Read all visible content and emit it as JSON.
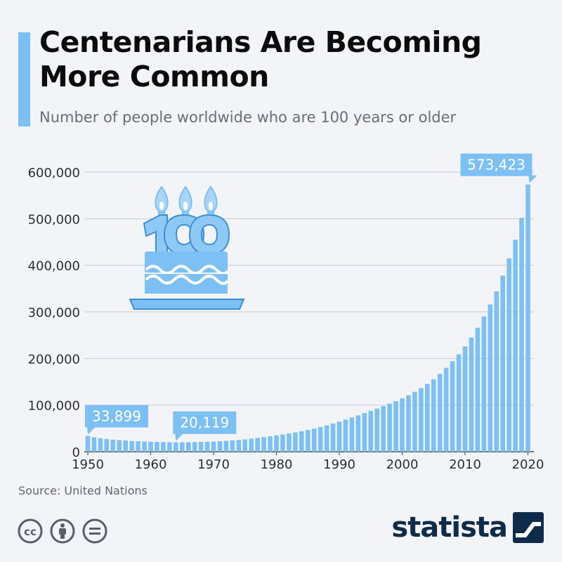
{
  "header": {
    "title": "Centenarians Are Becoming More Common",
    "subtitle": "Number of people worldwide who are 100 years or older"
  },
  "footer": {
    "source": "Source: United Nations",
    "brand": "statista"
  },
  "colors": {
    "bar": "#7cc0f4",
    "label_bg": "#7cc0f4",
    "accent": "#7cc0f4",
    "brand": "#0e2b4a"
  },
  "icons": [
    "birthday-cake-100-icon",
    "cc-icon",
    "attribution-icon",
    "no-derivatives-icon",
    "statista-logo-icon"
  ],
  "chart_data": {
    "type": "bar",
    "title": "Centenarians Are Becoming More Common",
    "subtitle": "Number of people worldwide who are 100 years or older",
    "xlabel": "",
    "ylabel": "",
    "x": [
      1950,
      1951,
      1952,
      1953,
      1954,
      1955,
      1956,
      1957,
      1958,
      1959,
      1960,
      1961,
      1962,
      1963,
      1964,
      1965,
      1966,
      1967,
      1968,
      1969,
      1970,
      1971,
      1972,
      1973,
      1974,
      1975,
      1976,
      1977,
      1978,
      1979,
      1980,
      1981,
      1982,
      1983,
      1984,
      1985,
      1986,
      1987,
      1988,
      1989,
      1990,
      1991,
      1992,
      1993,
      1994,
      1995,
      1996,
      1997,
      1998,
      1999,
      2000,
      2001,
      2002,
      2003,
      2004,
      2005,
      2006,
      2007,
      2008,
      2009,
      2010,
      2011,
      2012,
      2013,
      2014,
      2015,
      2016,
      2017,
      2018,
      2019,
      2020
    ],
    "values": [
      33899,
      31000,
      29000,
      27500,
      26000,
      25000,
      24000,
      23000,
      22500,
      22000,
      21500,
      21000,
      20600,
      20300,
      20119,
      20200,
      20400,
      20700,
      21000,
      21400,
      21900,
      22500,
      23300,
      24200,
      25300,
      26500,
      28000,
      29600,
      31300,
      33100,
      35000,
      37000,
      39200,
      41500,
      44000,
      46800,
      49800,
      53000,
      56500,
      60300,
      64500,
      69000,
      73500,
      78000,
      82800,
      87700,
      92700,
      97800,
      103000,
      108500,
      114500,
      121000,
      128500,
      136500,
      145500,
      155500,
      167000,
      180000,
      194000,
      209000,
      226000,
      245000,
      266000,
      290000,
      316000,
      344000,
      378000,
      415000,
      455000,
      502000,
      573423
    ],
    "ylim": [
      0,
      600000
    ],
    "y_ticks": [
      "0",
      "100,000",
      "200,000",
      "300,000",
      "400,000",
      "500,000",
      "600,000"
    ],
    "x_ticks": [
      "1950",
      "1960",
      "1970",
      "1980",
      "1990",
      "2000",
      "2010",
      "2020"
    ],
    "grid": true,
    "annotations": [
      {
        "year": 1950,
        "text": "33,899"
      },
      {
        "year": 1964,
        "text": "20,119"
      },
      {
        "year": 2020,
        "text": "573,423"
      }
    ]
  }
}
